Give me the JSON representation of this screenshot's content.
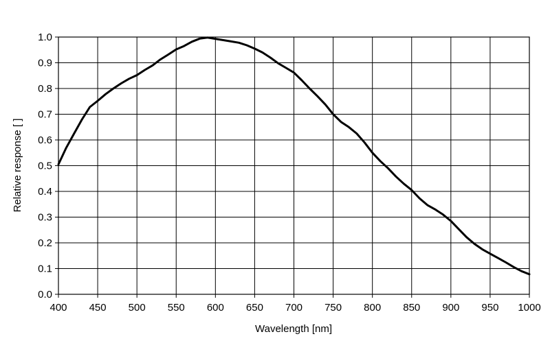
{
  "chart_data": {
    "type": "line",
    "title": "",
    "xlabel": "Wavelength [nm]",
    "ylabel": "Relative response [ ]",
    "xlim": [
      400,
      1000
    ],
    "ylim": [
      0,
      1.0
    ],
    "grid": true,
    "x_ticks": [
      "400",
      "450",
      "500",
      "550",
      "600",
      "650",
      "700",
      "750",
      "800",
      "850",
      "900",
      "950",
      "1000"
    ],
    "y_ticks": [
      "0.0",
      "0.1",
      "0.2",
      "0.3",
      "0.4",
      "0.5",
      "0.6",
      "0.7",
      "0.8",
      "0.9",
      "1.0"
    ],
    "series": [
      {
        "x": [
          400,
          410,
          420,
          430,
          440,
          450,
          460,
          470,
          480,
          490,
          500,
          510,
          520,
          530,
          540,
          550,
          560,
          570,
          580,
          590,
          600,
          610,
          620,
          630,
          640,
          650,
          660,
          670,
          680,
          690,
          700,
          710,
          720,
          730,
          740,
          750,
          760,
          770,
          780,
          790,
          800,
          810,
          820,
          830,
          840,
          850,
          860,
          870,
          880,
          890,
          900,
          910,
          920,
          930,
          940,
          950,
          960,
          970,
          980,
          990,
          1000
        ],
        "values": [
          0.505,
          0.57,
          0.625,
          0.68,
          0.728,
          0.752,
          0.778,
          0.8,
          0.82,
          0.838,
          0.852,
          0.872,
          0.89,
          0.913,
          0.932,
          0.952,
          0.965,
          0.982,
          0.994,
          0.998,
          0.993,
          0.988,
          0.983,
          0.978,
          0.968,
          0.955,
          0.94,
          0.92,
          0.898,
          0.88,
          0.862,
          0.832,
          0.8,
          0.77,
          0.738,
          0.7,
          0.67,
          0.65,
          0.625,
          0.59,
          0.55,
          0.518,
          0.49,
          0.458,
          0.43,
          0.405,
          0.373,
          0.347,
          0.33,
          0.31,
          0.285,
          0.253,
          0.222,
          0.196,
          0.175,
          0.158,
          0.141,
          0.124,
          0.106,
          0.09,
          0.078
        ]
      }
    ]
  }
}
